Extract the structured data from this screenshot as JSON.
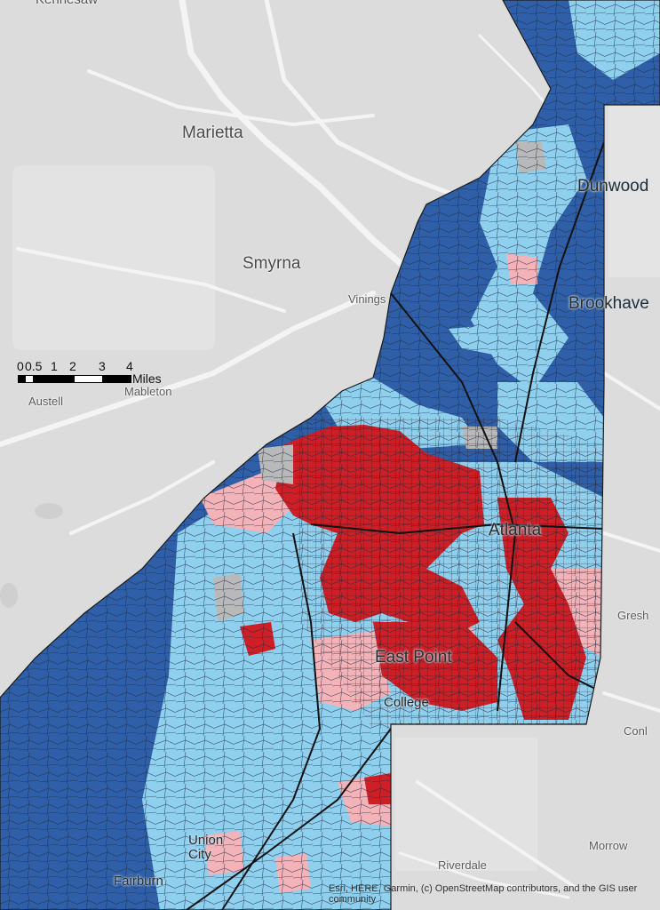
{
  "places": {
    "kennesaw": "Kennesaw",
    "marietta": "Marietta",
    "smyrna": "Smyrna",
    "vinings": "Vinings",
    "dunwoody": "Dunwood",
    "brookhaven": "Brookhave",
    "austell": "Austell",
    "mableton": "Mableton",
    "atlanta": "Atlanta",
    "east_point": "East Point",
    "college_park": "College",
    "gresham": "Gresh",
    "conley": "Conl",
    "morrow": "Morrow",
    "riverdale": "Riverdale",
    "union_city": "Union City",
    "fairburn": "Fairburn"
  },
  "scale_bar": {
    "ticks": [
      "0",
      "0.5",
      "1",
      "2",
      "3",
      "4"
    ],
    "unit": "Miles"
  },
  "attribution": "Esri, HERE, Garmin, (c) OpenStreetMap contributors, and the GIS user community",
  "colors": {
    "background": "#dcdcdc",
    "dark_blue": "#2f5fa8",
    "light_blue": "#8fd0ef",
    "light_red": "#f4b3b8",
    "dark_red": "#cf1f26",
    "no_data_gray": "#b9b9b9"
  }
}
